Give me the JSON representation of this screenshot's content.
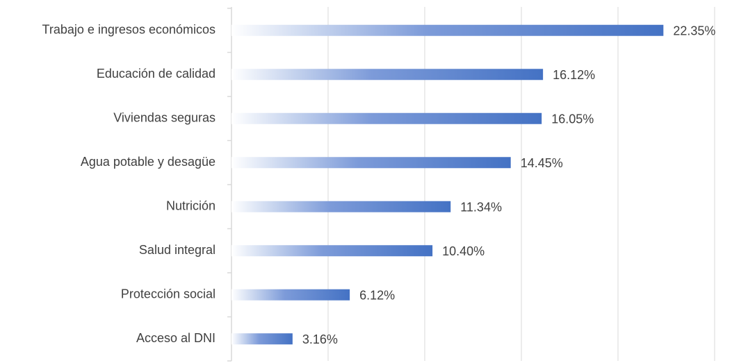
{
  "chart_data": {
    "type": "barh",
    "categories": [
      "Trabajo e ingresos económicos",
      "Educación de calidad",
      "Viviendas seguras",
      "Agua potable y desagüe",
      "Nutrición",
      "Salud integral",
      "Protección social",
      "Acceso al DNI"
    ],
    "values": [
      22.35,
      16.12,
      16.05,
      14.45,
      11.34,
      10.4,
      6.12,
      3.16
    ],
    "value_labels": [
      "22.35%",
      "16.12%",
      "16.05%",
      "14.45%",
      "11.34%",
      "10.40%",
      "6.12%",
      "3.16%"
    ],
    "color": "#4472c4",
    "xlim": [
      0,
      25
    ],
    "xticks": [
      0,
      5,
      10,
      15,
      20,
      25
    ],
    "grid": true
  }
}
